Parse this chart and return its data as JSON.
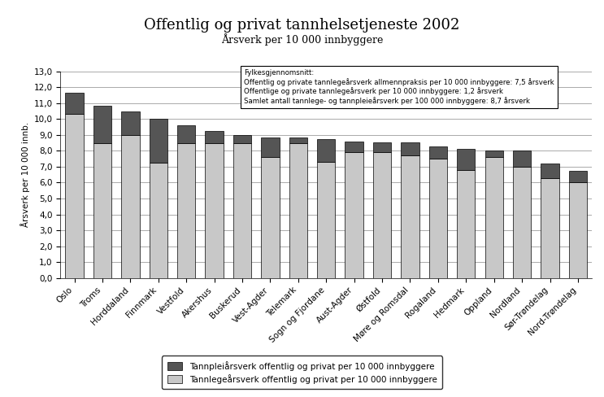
{
  "title": "Offentlig og privat tannhelsetjeneste 2002",
  "subtitle": "Årsverk per 10 000 innbyggere",
  "ylabel": "Årsverk per 10 000 innb.",
  "categories": [
    "Oslo",
    "Troms",
    "Horddaland",
    "Finnmark",
    "Vestfold",
    "Akershus",
    "Buskerud",
    "Vest-Agder",
    "Telemark",
    "Sogn og Fjordane",
    "Aust-Agder",
    "Østfold",
    "Møre og Romsdal",
    "Rogaland",
    "Hedmark",
    "Oppland",
    "Nordland",
    "Sør-Trøndelag",
    "Nord-Trøndelag"
  ],
  "tannlege_values": [
    10.35,
    8.5,
    9.0,
    7.25,
    8.5,
    8.5,
    8.5,
    7.6,
    8.5,
    7.3,
    7.9,
    7.9,
    7.7,
    7.5,
    6.8,
    7.6,
    7.0,
    6.3,
    6.0
  ],
  "tannpleier_values": [
    1.3,
    2.35,
    1.5,
    2.75,
    1.1,
    0.75,
    0.5,
    1.25,
    0.35,
    1.45,
    0.7,
    0.65,
    0.85,
    0.8,
    1.35,
    0.4,
    1.0,
    0.9,
    0.75
  ],
  "tannlege_color": "#c8c8c8",
  "tannpleier_color": "#555555",
  "ylim": [
    0,
    13.0
  ],
  "yticks": [
    0.0,
    1.0,
    2.0,
    3.0,
    4.0,
    5.0,
    6.0,
    7.0,
    8.0,
    9.0,
    10.0,
    11.0,
    12.0,
    13.0
  ],
  "ytick_labels": [
    "0,0",
    "1,0",
    "2,0",
    "3,0",
    "4,0",
    "5,0",
    "6,0",
    "7,0",
    "8,0",
    "9,0",
    "10,0",
    "11,0",
    "12,0",
    "13,0"
  ],
  "legend_tannpleier": "Tannpleiårsverk offentlig og privat per 10 000 innbyggere",
  "legend_tannlege": "Tannlegeårsverk offentlig og privat per 10 000 innbyggere",
  "infobox_lines": [
    "Fylkesgjennomsnitt:",
    "Offentlig og private tannlegeårsverk allmennpraksis per 10 000 innbyggere: 7,5 årsverk",
    "Offentlige og private tannlegeårsverk per 10 000 innbyggere: 1,2 årsverk",
    "Samlet antall tannlege- og tannpleieårsverk per 100 000 innbyggere: 8,7 årsverk"
  ],
  "background_color": "#ffffff",
  "bar_edge_color": "#000000"
}
